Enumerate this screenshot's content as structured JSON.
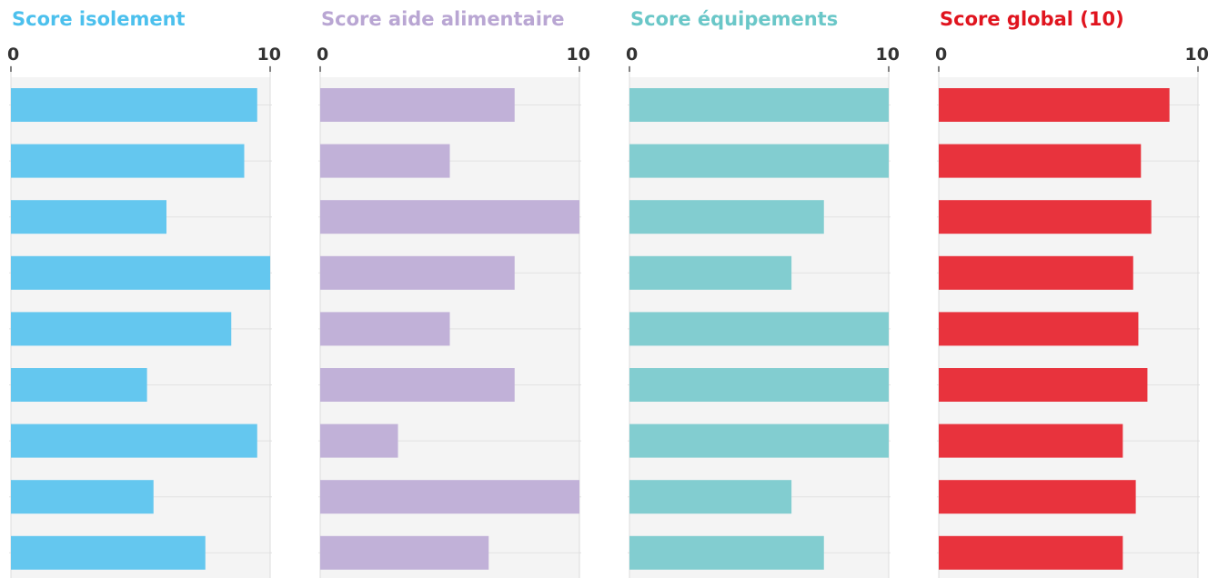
{
  "chart_data": [
    {
      "type": "bar",
      "orientation": "horizontal",
      "title": "Score isolement",
      "title_color": "#4cc0ed",
      "bar_color": "#64c7ef",
      "xlim": [
        0,
        10
      ],
      "ticks": [
        "0",
        "10"
      ],
      "grid": true,
      "values": [
        9.5,
        9.0,
        6.0,
        10.0,
        8.5,
        5.25,
        9.5,
        5.5,
        7.5
      ]
    },
    {
      "type": "bar",
      "orientation": "horizontal",
      "title": "Score aide alimentaire",
      "title_color": "#b9a6d3",
      "bar_color": "#c1b1d8",
      "xlim": [
        0,
        10
      ],
      "ticks": [
        "0",
        "10"
      ],
      "grid": true,
      "values": [
        7.5,
        5.0,
        10.0,
        7.5,
        5.0,
        7.5,
        3.0,
        10.0,
        6.5
      ]
    },
    {
      "type": "bar",
      "orientation": "horizontal",
      "title": "Score équipements",
      "title_color": "#6ac7c8",
      "bar_color": "#82cdd0",
      "xlim": [
        0,
        10
      ],
      "ticks": [
        "0",
        "10"
      ],
      "grid": true,
      "values": [
        10.0,
        10.0,
        7.5,
        6.25,
        10.0,
        10.0,
        10.0,
        6.25,
        7.5
      ]
    },
    {
      "type": "bar",
      "orientation": "horizontal",
      "title": "Score global (10)",
      "title_color": "#e0141e",
      "bar_color": "#e8333d",
      "xlim": [
        0,
        10
      ],
      "ticks": [
        "0",
        "10"
      ],
      "grid": true,
      "values": [
        8.9,
        7.8,
        8.2,
        7.5,
        7.7,
        8.05,
        7.1,
        7.6,
        7.1
      ]
    }
  ]
}
